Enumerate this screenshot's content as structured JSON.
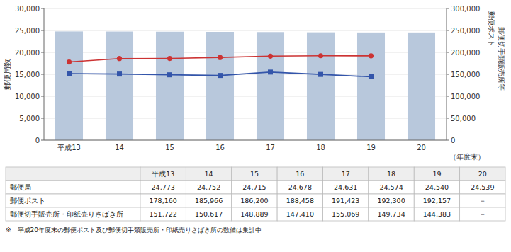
{
  "chart_data": {
    "type": "bar",
    "categories": [
      "平成13",
      "14",
      "15",
      "16",
      "17",
      "18",
      "19",
      "20"
    ],
    "x_label": "（年度末）",
    "y_label": "郵便局数",
    "y2_label": [
      "郵便ポスト",
      "郵便切手類販売所等"
    ],
    "series": [
      {
        "name": "郵便局",
        "type": "bar",
        "color": "#b8c8dc",
        "values": [
          24773,
          24752,
          24715,
          24678,
          24631,
          24574,
          24540,
          24539
        ],
        "value_labels": [
          "24,773",
          "24,752",
          "24,715",
          "24,678",
          "24,631",
          "24,574",
          "24,540",
          "24,539"
        ]
      },
      {
        "name": "郵便ポスト",
        "type": "line",
        "axis": "y2",
        "color": "#cc3333",
        "marker": "circle",
        "values": [
          178160,
          185966,
          186200,
          188458,
          191423,
          192300,
          192157,
          null
        ],
        "value_labels": [
          "178,160",
          "185,966",
          "186,200",
          "188,458",
          "191,423",
          "192,300",
          "192,157",
          "－"
        ]
      },
      {
        "name": "郵便切手販売所・印紙売りさばき所",
        "type": "line",
        "axis": "y2",
        "color": "#3355aa",
        "marker": "square",
        "values": [
          151722,
          150617,
          148889,
          147410,
          155069,
          149734,
          144383,
          null
        ],
        "value_labels": [
          "151,722",
          "150,617",
          "148,889",
          "147,410",
          "155,069",
          "149,734",
          "144,383",
          "－"
        ]
      }
    ],
    "ylim": [
      0,
      30000
    ],
    "yticks": [
      0,
      {
        "value": 5000,
        "label": "5,000"
      },
      {
        "value": 10000,
        "label": "10,000"
      },
      {
        "value": 15000,
        "label": "15,000"
      },
      {
        "value": 20000,
        "label": "20,000"
      },
      {
        "value": 25000,
        "label": "25,000"
      },
      {
        "value": 30000,
        "label": "30,000"
      }
    ],
    "y2lim": [
      0,
      300000
    ],
    "y2ticks": [
      0,
      {
        "value": 50000,
        "label": "50,000"
      },
      {
        "value": 100000,
        "label": "100,000"
      },
      {
        "value": 150000,
        "label": "150,000"
      },
      {
        "value": 200000,
        "label": "200,000"
      },
      {
        "value": 250000,
        "label": "250,000"
      },
      {
        "value": 300000,
        "label": "300,000"
      }
    ],
    "grid": true,
    "note": "※　平成20年度末の郵便ポスト及び郵便切手類販売所・印紙売りさばき所の数値は集計中"
  }
}
